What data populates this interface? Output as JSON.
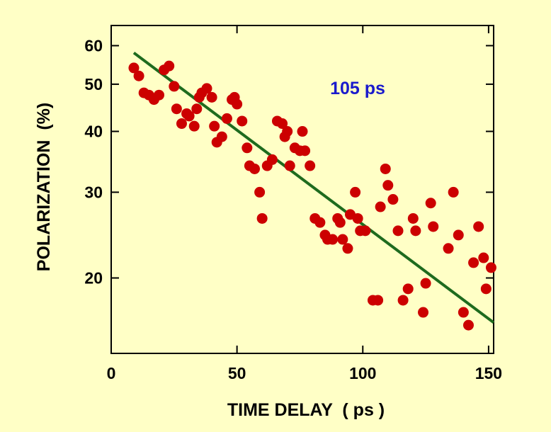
{
  "chart_data": {
    "type": "scatter",
    "title": "",
    "xlabel": "TIME DELAY  ( ps )",
    "ylabel": "POLARIZATION  (%)",
    "xlim": [
      0,
      152
    ],
    "ylim": [
      14,
      66
    ],
    "y_scale": "log",
    "x_ticks": [
      0,
      50,
      100,
      150
    ],
    "y_ticks": [
      20,
      30,
      40,
      50,
      60
    ],
    "grid": false,
    "annotation": "105 ps",
    "colors": {
      "background": "#ffffc6",
      "points": "#cc0000",
      "fit_line": "#1e6b1e",
      "annotation": "#1a1acc"
    },
    "series": [
      {
        "values_x": [
          9,
          11,
          13,
          15,
          17,
          19,
          21,
          23,
          25,
          26,
          28,
          30,
          31,
          33,
          34,
          35,
          36,
          38,
          40,
          41,
          42,
          44,
          46,
          48,
          49,
          50,
          52,
          54,
          55,
          57,
          59,
          60,
          62,
          64,
          66,
          68,
          69,
          70,
          71,
          73,
          75,
          76,
          77,
          79,
          81,
          83,
          85,
          86,
          88,
          90,
          91,
          92,
          94,
          95,
          97,
          98,
          99,
          101,
          104,
          106,
          107,
          109,
          110,
          112,
          114,
          116,
          118,
          120,
          121,
          124,
          125,
          127,
          128,
          134,
          136,
          138,
          140,
          142,
          144,
          146,
          148,
          149,
          151
        ],
        "values_y": [
          54,
          52,
          48,
          47.5,
          46.5,
          47.5,
          53.5,
          54.5,
          49.5,
          44.5,
          41.5,
          43.5,
          43,
          41,
          44.5,
          47,
          48,
          49,
          47,
          41,
          38,
          39,
          42.5,
          46.5,
          47,
          45.5,
          42,
          37,
          34,
          33.5,
          30,
          26.5,
          34,
          35,
          42,
          41.5,
          39,
          40,
          34,
          37,
          36.5,
          40,
          36.5,
          34,
          26.5,
          26,
          24.5,
          24,
          24,
          26.5,
          26,
          24,
          23,
          27,
          30,
          26.5,
          25,
          25,
          18,
          18,
          28,
          33.5,
          31,
          29,
          25,
          18,
          19,
          26.5,
          25,
          17,
          19.5,
          28.5,
          25.5,
          23,
          30,
          24.5,
          17,
          16,
          21.5,
          25.5,
          22,
          19,
          21
        ]
      }
    ],
    "fit": {
      "x": [
        9,
        152
      ],
      "y": [
        58,
        16.2
      ]
    }
  }
}
